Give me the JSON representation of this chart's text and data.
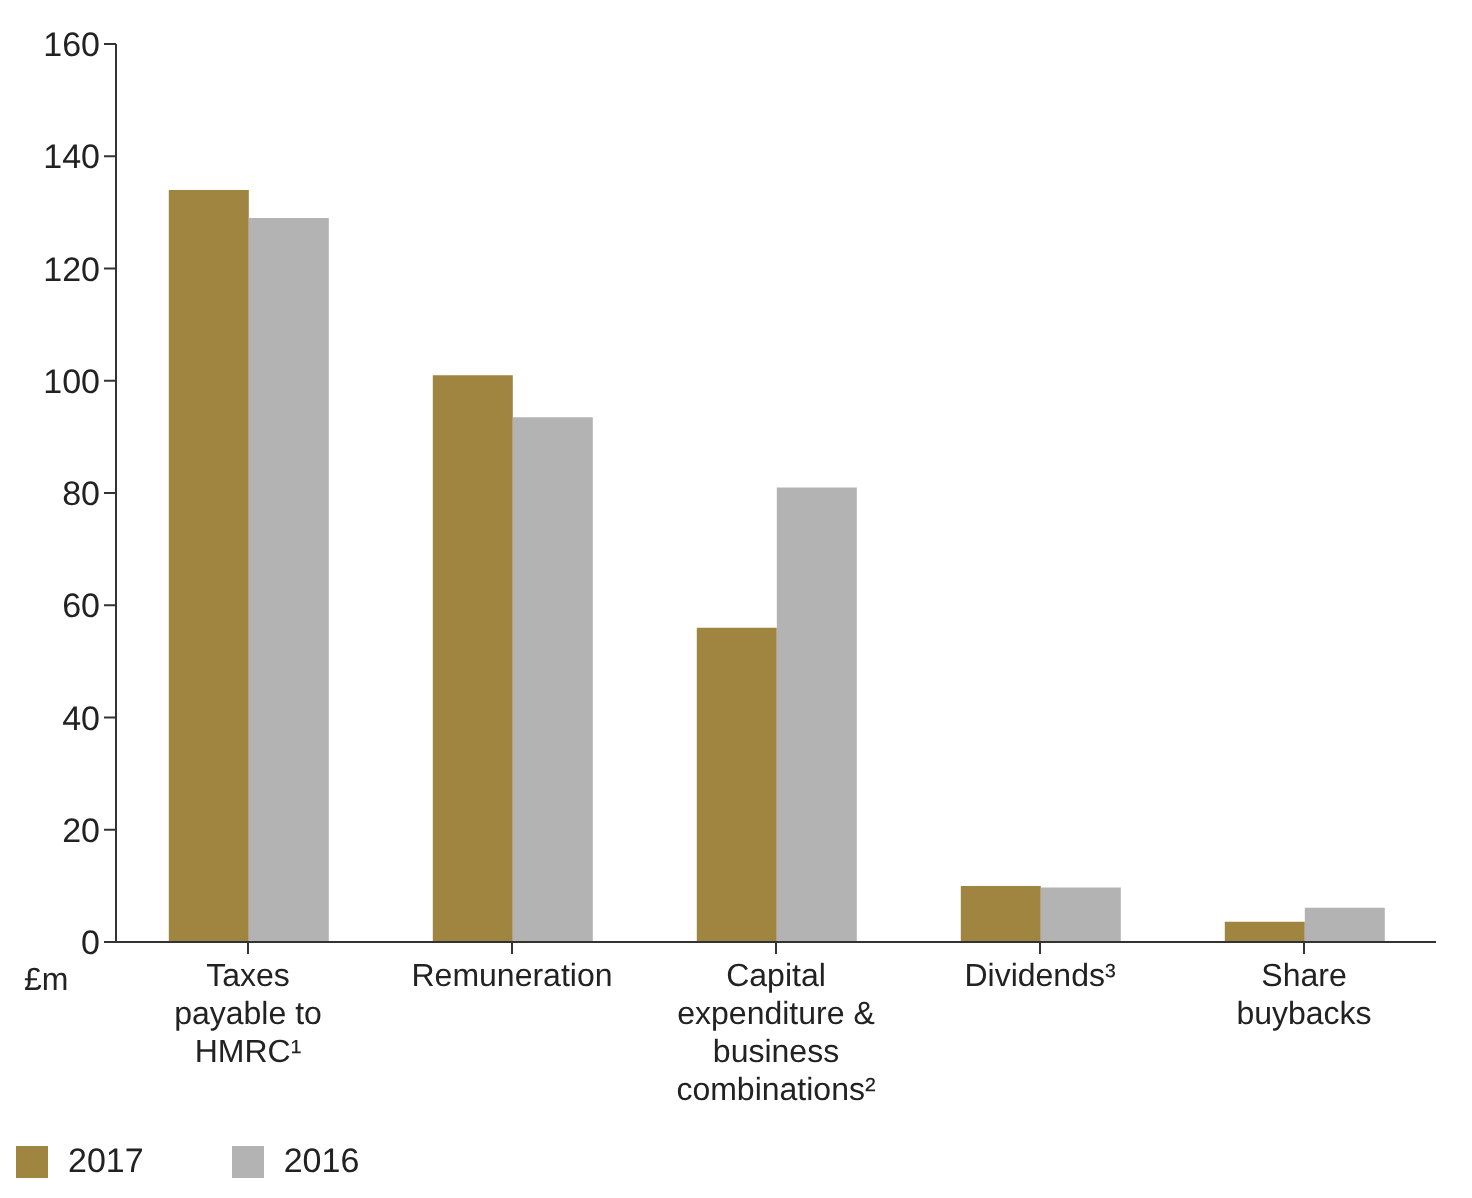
{
  "chart_data": {
    "type": "bar",
    "ylabel": "£m",
    "categories": [
      "Taxes payable to HMRC¹",
      "Remuneration",
      "Capital expenditure & business combinations²",
      "Dividends³",
      "Share buybacks"
    ],
    "series": [
      {
        "name": "2017",
        "color": "#a08540",
        "values": [
          134,
          101,
          56,
          10,
          3.6
        ]
      },
      {
        "name": "2016",
        "color": "#b3b3b3",
        "values": [
          129,
          93.5,
          81,
          9.7,
          6.1
        ]
      }
    ],
    "ylim": [
      0,
      160
    ],
    "yticks": [
      0,
      20,
      40,
      60,
      80,
      100,
      120,
      140,
      160
    ],
    "grid": false,
    "legend": "bottom left"
  }
}
